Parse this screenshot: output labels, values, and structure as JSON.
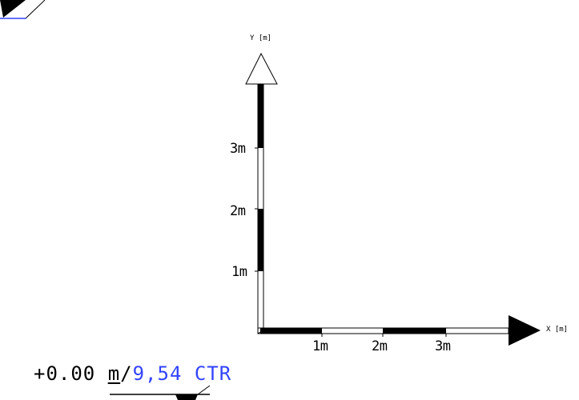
{
  "axes": {
    "x_title": "X [m]",
    "y_title": "Y [m]",
    "x_ticks": [
      "1m",
      "2m",
      "3m"
    ],
    "y_ticks": [
      "1m",
      "2m",
      "3m"
    ]
  },
  "elevation": {
    "value": "+0.00",
    "unit": "m",
    "separator": "/",
    "reference_value": "9,54",
    "reference_label": "CTR"
  },
  "colors": {
    "ink": "#000000",
    "accent_blue": "#3344ff"
  },
  "icons": {
    "top_left": "section-marker-icon",
    "bottom": "elevation-marker-icon"
  }
}
